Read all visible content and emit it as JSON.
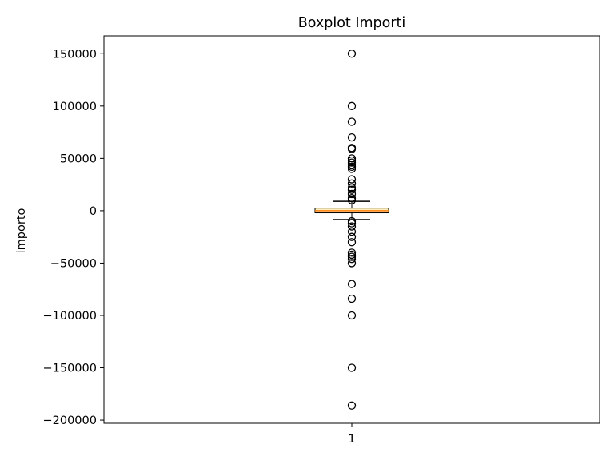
{
  "chart_data": {
    "type": "boxplot",
    "title": "Boxplot Importi",
    "xlabel": "",
    "ylabel": "importo",
    "categories": [
      "1"
    ],
    "ylim": [
      -203000,
      167000
    ],
    "yticks": [
      150000,
      100000,
      50000,
      0,
      -50000,
      -100000,
      -150000,
      -200000
    ],
    "ytick_labels": [
      "150000",
      "100000",
      "50000",
      "0",
      "−50000",
      "−100000",
      "−150000",
      "−200000"
    ],
    "grid": false,
    "box": {
      "q1": -2000,
      "median": 0,
      "q3": 2500,
      "whisker_low": -8500,
      "whisker_high": 9000
    },
    "outliers": [
      150000,
      100000,
      85000,
      70000,
      60000,
      59000,
      50000,
      48000,
      46000,
      44000,
      42000,
      40000,
      30000,
      26000,
      22000,
      20000,
      16000,
      12000,
      10000,
      -10000,
      -12000,
      -15000,
      -20000,
      -25000,
      -30000,
      -40000,
      -42000,
      -44000,
      -46000,
      -50000,
      -70000,
      -84000,
      -100000,
      -150000,
      -186000
    ],
    "colors": {
      "box_fill": "#ffeebd",
      "median": "#ff7f0e",
      "stroke": "#000000"
    }
  }
}
